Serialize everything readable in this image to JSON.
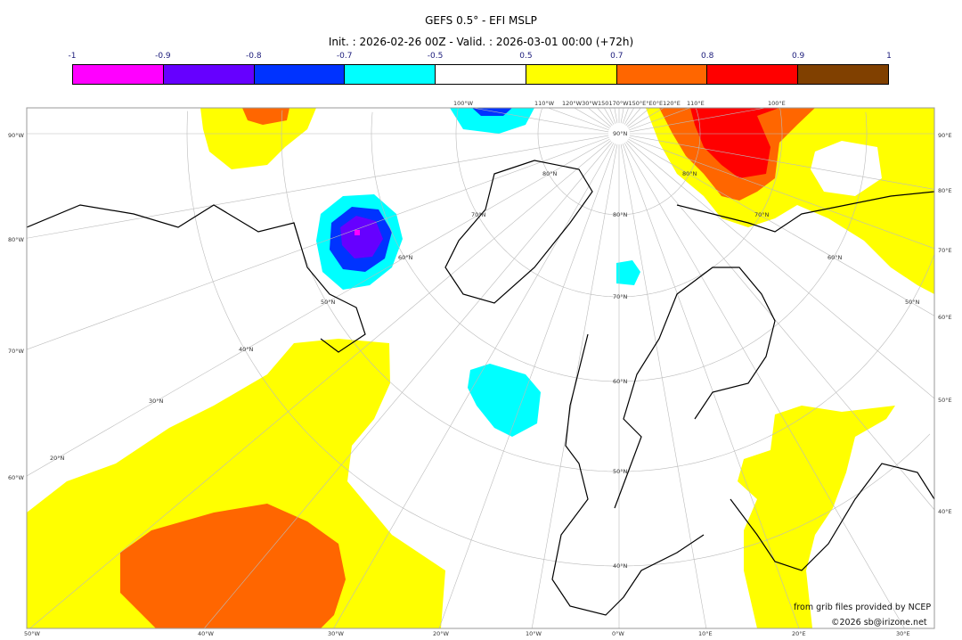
{
  "title": "GEFS 0.5° - EFI MSLP",
  "subtitle": "Init. : 2026-02-26 00Z - Valid. : 2026-03-01 00:00 (+72h)",
  "colorbar": {
    "ticks": [
      "-1",
      "-0.9",
      "-0.8",
      "-0.7",
      "-0.5",
      "0.5",
      "0.7",
      "0.8",
      "0.9",
      "1"
    ],
    "colors": [
      "#ff00ff",
      "#6600ff",
      "#0033ff",
      "#00ffff",
      "#ffffff",
      "#ffff00",
      "#ff6600",
      "#ff0000",
      "#804000"
    ]
  },
  "map": {
    "left_labels": [
      "90°W",
      "80°W",
      "70°W",
      "60°W"
    ],
    "right_labels": [
      "90°E",
      "80°E",
      "70°E",
      "60°E",
      "50°E",
      "40°E"
    ],
    "bottom_labels": [
      "50°W",
      "40°W",
      "30°W",
      "20°W",
      "10°W",
      "0°W",
      "10°E",
      "20°E",
      "30°E"
    ],
    "top_labels": [
      "100°W",
      "110°W",
      "120°W30°W150170°W150°E°E0°E120°E",
      "110°E",
      "100°E"
    ],
    "lat_labels_center": [
      "90°N",
      "80°N",
      "70°N",
      "60°N",
      "50°N",
      "40°N"
    ],
    "lat_labels_left": [
      "80°N",
      "70°N",
      "60°N",
      "50°N",
      "40°N",
      "30°N",
      "20°N"
    ],
    "lat_labels_right": [
      "80°N",
      "70°N",
      "60°N",
      "50°N"
    ]
  },
  "credits": {
    "source": "from grib files provided by NCEP",
    "copyright": "©2026 sb@irizone.net"
  }
}
